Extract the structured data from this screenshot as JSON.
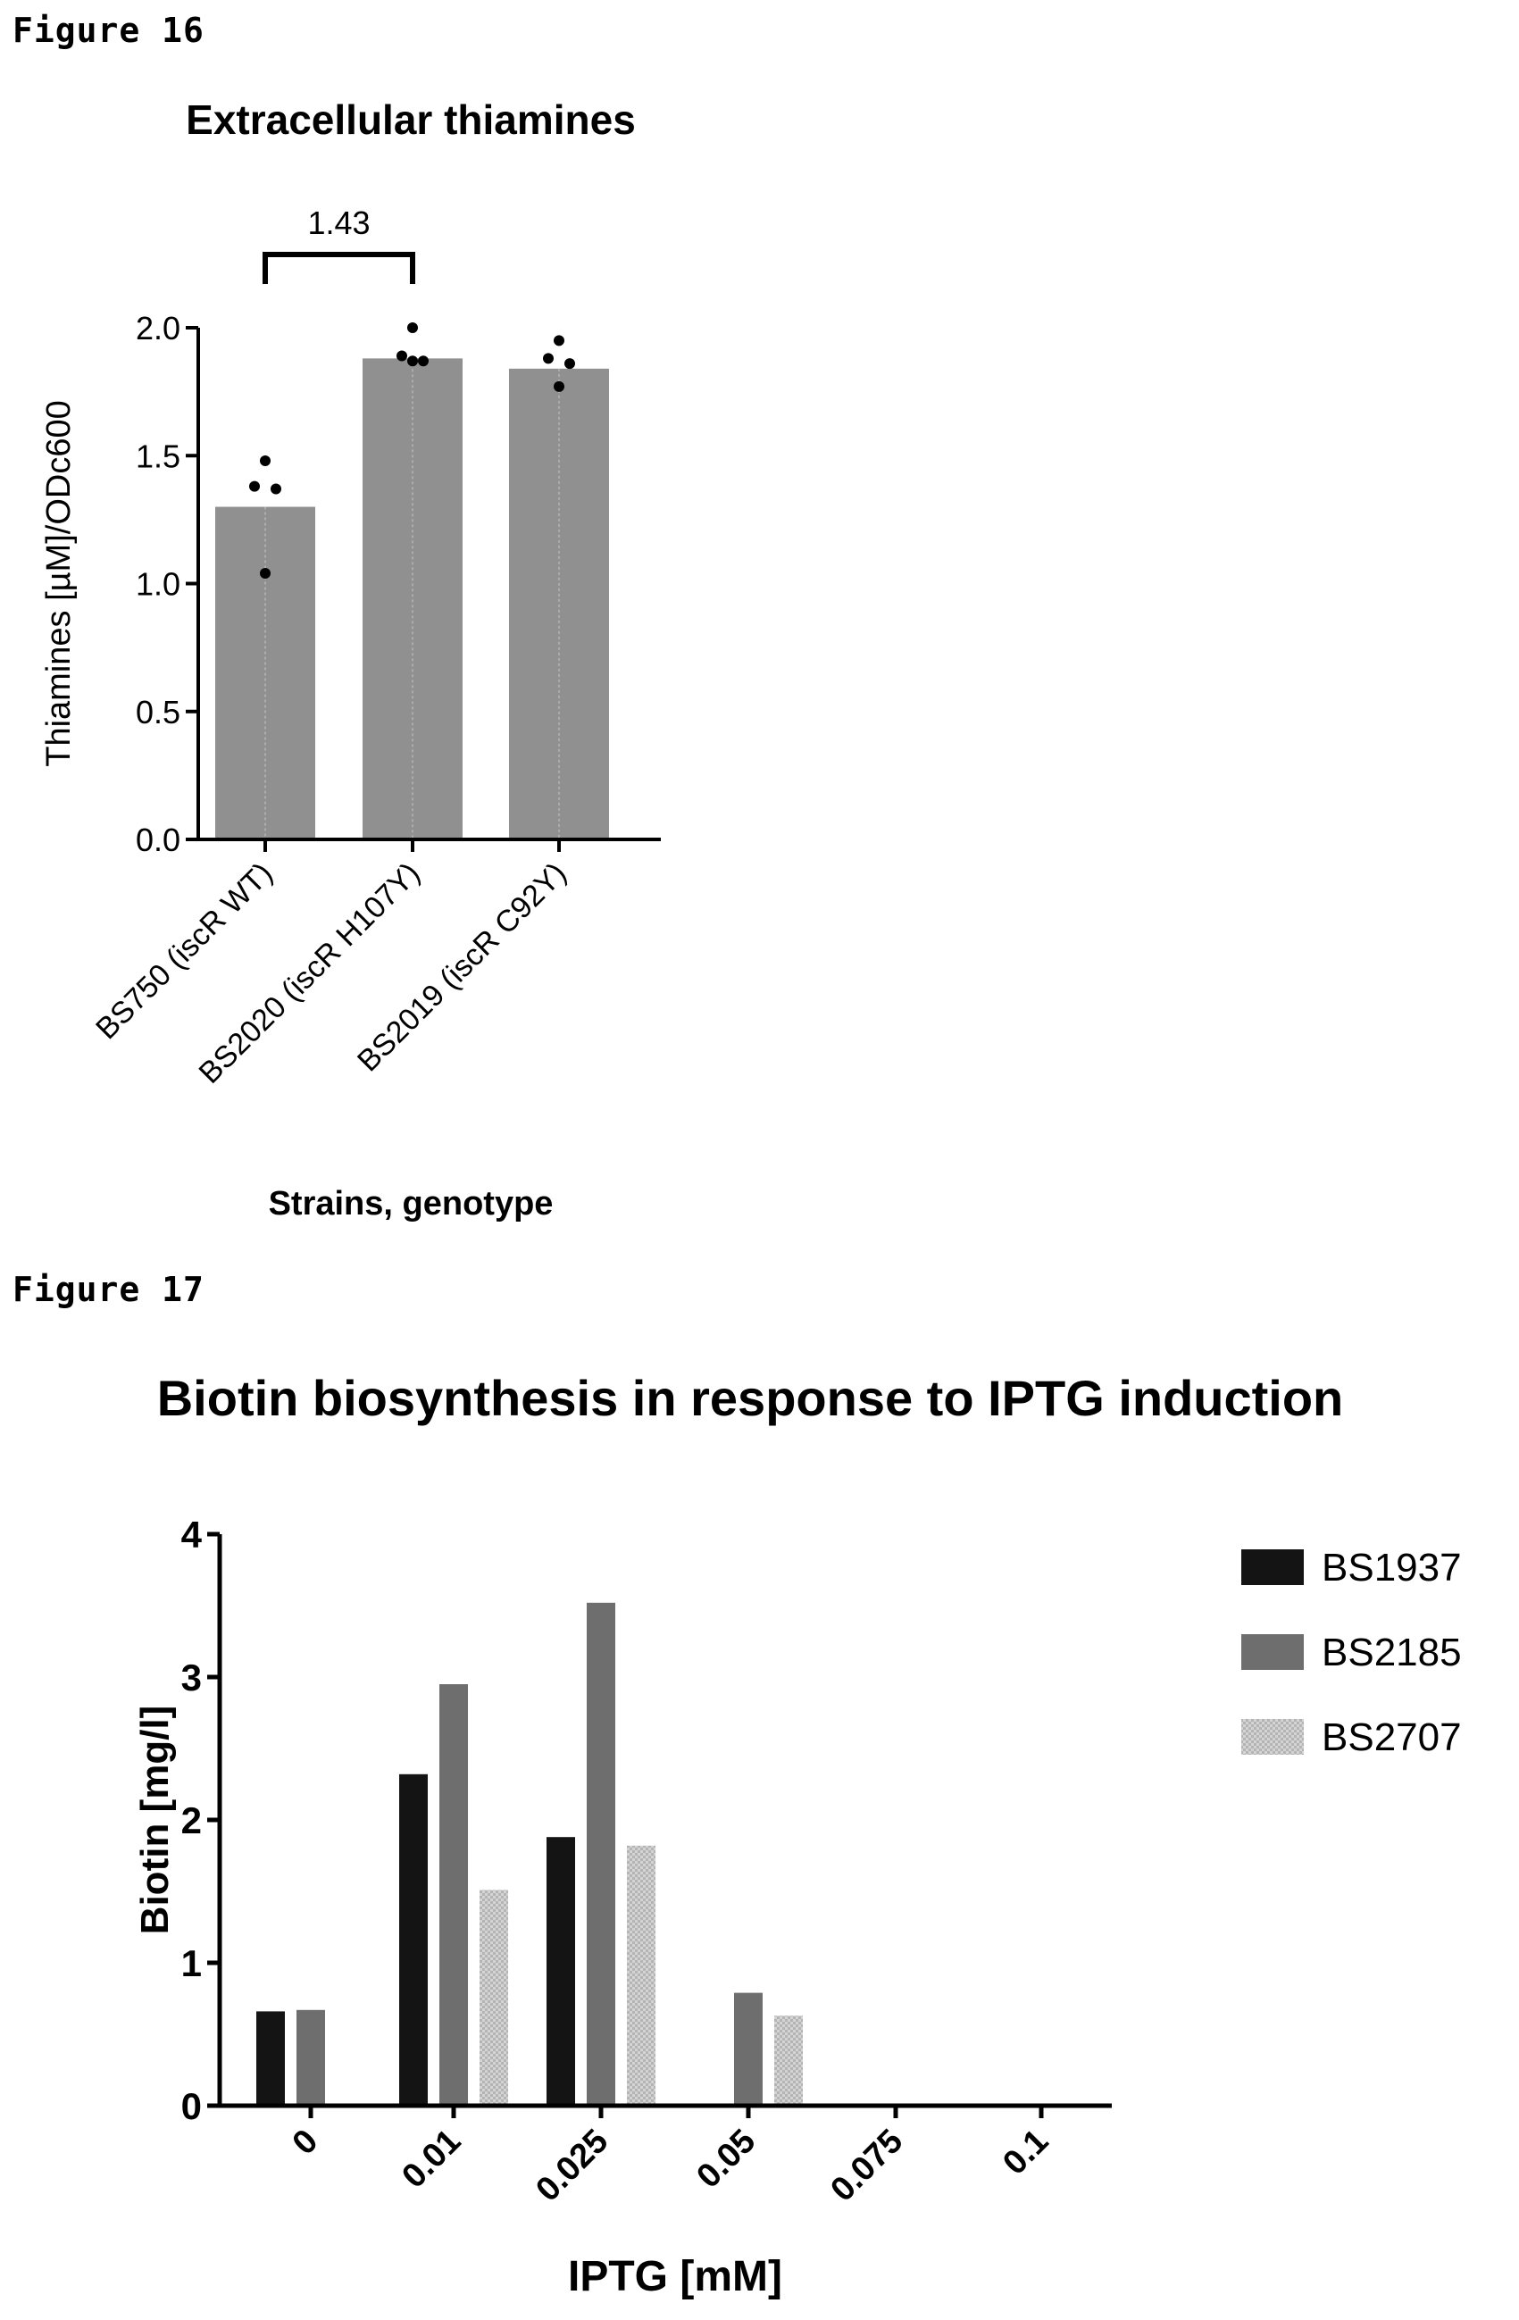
{
  "figures": [
    {
      "label": "Figure 16",
      "chart_data": {
        "type": "bar",
        "title": "Extracellular thiamines",
        "xlabel": "Strains, genotype",
        "ylabel": "Thiamines [µM]/ODc600",
        "ylim": [
          0,
          2.0
        ],
        "yticks": [
          "0.0",
          "0.5",
          "1.0",
          "1.5",
          "2.0"
        ],
        "categories": [
          "BS750 (iscR WT)",
          "BS2020 (iscR H107Y)",
          "BS2019 (iscR C92Y)"
        ],
        "values": [
          1.3,
          1.88,
          1.84
        ],
        "points": [
          [
            1.48,
            1.38,
            1.37,
            1.04
          ],
          [
            2.0,
            1.89,
            1.87,
            1.87
          ],
          [
            1.95,
            1.88,
            1.86,
            1.77
          ]
        ],
        "annotation": {
          "text": "1.43",
          "from": 0,
          "to": 1
        },
        "bar_color": "#909090",
        "grid": false,
        "legend": "none"
      }
    },
    {
      "label": "Figure 17",
      "chart_data": {
        "type": "bar",
        "title": "Biotin biosynthesis in response to IPTG induction",
        "xlabel": "IPTG [mM]",
        "ylabel": "Biotin [mg/l]",
        "ylim": [
          0,
          4
        ],
        "yticks": [
          "0",
          "1",
          "2",
          "3",
          "4"
        ],
        "categories": [
          "0",
          "0.01",
          "0.025",
          "0.05",
          "0.075",
          "0.1"
        ],
        "series": [
          {
            "name": "BS1937",
            "values": [
              0.66,
              2.32,
              1.88,
              0,
              0,
              0
            ],
            "color": "#141414"
          },
          {
            "name": "BS2185",
            "values": [
              0.67,
              2.95,
              3.52,
              0.79,
              0,
              0
            ],
            "color": "#6e6e6e"
          },
          {
            "name": "BS2707",
            "values": [
              0,
              1.51,
              1.82,
              0.63,
              0,
              0
            ],
            "color": "#c8c8c8"
          }
        ],
        "grid": false,
        "legend": "right"
      }
    }
  ]
}
